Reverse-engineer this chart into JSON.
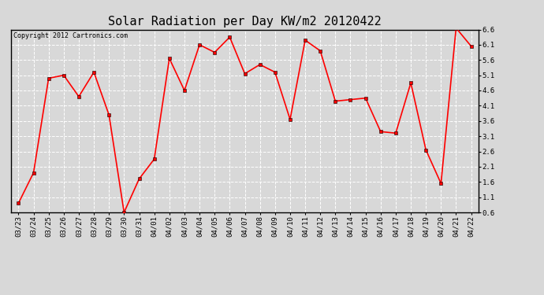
{
  "title": "Solar Radiation per Day KW/m2 20120422",
  "copyright": "Copyright 2012 Cartronics.com",
  "labels": [
    "03/23",
    "03/24",
    "03/25",
    "03/26",
    "03/27",
    "03/28",
    "03/29",
    "03/30",
    "03/31",
    "04/01",
    "04/02",
    "04/03",
    "04/04",
    "04/05",
    "04/06",
    "04/07",
    "04/08",
    "04/09",
    "04/10",
    "04/11",
    "04/12",
    "04/13",
    "04/14",
    "04/15",
    "04/16",
    "04/17",
    "04/18",
    "04/19",
    "04/20",
    "04/21",
    "04/22"
  ],
  "values": [
    0.9,
    1.9,
    5.0,
    5.1,
    4.4,
    5.2,
    3.8,
    0.6,
    1.7,
    2.35,
    5.65,
    4.6,
    6.1,
    5.85,
    6.35,
    5.15,
    5.45,
    5.2,
    3.65,
    6.25,
    5.9,
    4.25,
    4.3,
    4.35,
    3.25,
    3.2,
    4.85,
    2.65,
    1.55,
    6.65,
    6.05
  ],
  "line_color": "#ff0000",
  "marker": "s",
  "marker_size": 2.5,
  "line_width": 1.2,
  "ylim": [
    0.6,
    6.6
  ],
  "yticks": [
    0.6,
    1.1,
    1.6,
    2.1,
    2.6,
    3.1,
    3.6,
    4.1,
    4.6,
    5.1,
    5.6,
    6.1,
    6.6
  ],
  "bg_color": "#d8d8d8",
  "plot_bg_color": "#d8d8d8",
  "grid_color": "#ffffff",
  "title_fontsize": 11,
  "tick_fontsize": 6.5,
  "copyright_fontsize": 6
}
